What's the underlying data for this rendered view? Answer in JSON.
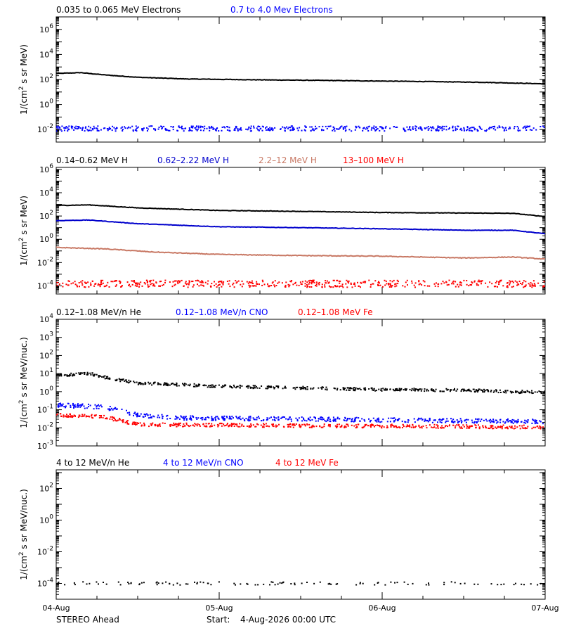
{
  "chart_data": [
    {
      "type": "scatter",
      "y_scale": "log",
      "ylabel_main": "1/(cm",
      "ylabel_sup": "2",
      "ylabel_rest": " s sr MeV)",
      "ylim": [
        0.001,
        10000000
      ],
      "yticks": [
        {
          "b": "10",
          "e": "6",
          "v": 1000000
        },
        {
          "b": "10",
          "e": "4",
          "v": 10000
        },
        {
          "b": "10",
          "e": "2",
          "v": 100
        },
        {
          "b": "10",
          "e": "0",
          "v": 1
        },
        {
          "b": "10",
          "e": "-2",
          "v": 0.01
        }
      ],
      "series": [
        {
          "name": "0.035 to 0.065 MeV Electrons",
          "color": "#000000",
          "style": "line",
          "noise": 0.02,
          "points": [
            [
              0,
              300
            ],
            [
              0.15,
              350
            ],
            [
              0.3,
              230
            ],
            [
              0.5,
              150
            ],
            [
              0.8,
              110
            ],
            [
              1.2,
              95
            ],
            [
              1.6,
              85
            ],
            [
              2.2,
              70
            ],
            [
              2.6,
              60
            ],
            [
              3,
              45
            ]
          ]
        },
        {
          "name": "0.7 to 4.0 Mev Electrons",
          "color": "#0000ff",
          "style": "scatter",
          "noise": 0.2,
          "points": [
            [
              0,
              0.012
            ],
            [
              3,
              0.012
            ]
          ]
        }
      ]
    },
    {
      "type": "scatter",
      "y_scale": "log",
      "ylabel_main": "1/(cm",
      "ylabel_sup": "2",
      "ylabel_rest": " s sr MeV)",
      "ylim": [
        2e-05,
        1500000
      ],
      "yticks": [
        {
          "b": "10",
          "e": "6",
          "v": 1000000
        },
        {
          "b": "10",
          "e": "4",
          "v": 10000
        },
        {
          "b": "10",
          "e": "2",
          "v": 100
        },
        {
          "b": "10",
          "e": "0",
          "v": 1
        },
        {
          "b": "10",
          "e": "-2",
          "v": 0.01
        },
        {
          "b": "10",
          "e": "-4",
          "v": 0.0001
        }
      ],
      "series": [
        {
          "name": "0.14–0.62 MeV H",
          "color": "#000000",
          "style": "line",
          "noise": 0.02,
          "points": [
            [
              0,
              800
            ],
            [
              0.2,
              900
            ],
            [
              0.5,
              500
            ],
            [
              1,
              300
            ],
            [
              1.5,
              250
            ],
            [
              2,
              200
            ],
            [
              2.5,
              180
            ],
            [
              2.8,
              170
            ],
            [
              3,
              90
            ]
          ]
        },
        {
          "name": "0.62–2.22 MeV H",
          "color": "#0000cc",
          "style": "line",
          "noise": 0.02,
          "points": [
            [
              0,
              40
            ],
            [
              0.2,
              45
            ],
            [
              0.5,
              22
            ],
            [
              1,
              12
            ],
            [
              1.5,
              10
            ],
            [
              2,
              8
            ],
            [
              2.5,
              6
            ],
            [
              2.8,
              6
            ],
            [
              3,
              3
            ]
          ]
        },
        {
          "name": "2.2–12 MeV H",
          "color": "#c87864",
          "style": "line",
          "noise": 0.03,
          "points": [
            [
              0,
              0.2
            ],
            [
              0.3,
              0.15
            ],
            [
              0.6,
              0.08
            ],
            [
              1,
              0.05
            ],
            [
              1.5,
              0.04
            ],
            [
              2,
              0.035
            ],
            [
              2.5,
              0.025
            ],
            [
              2.8,
              0.03
            ],
            [
              3,
              0.02
            ]
          ]
        },
        {
          "name": "13–100 MeV H",
          "color": "#ff0000",
          "style": "scatter",
          "noise": 0.3,
          "points": [
            [
              0,
              0.00015
            ],
            [
              3,
              0.00015
            ]
          ]
        }
      ]
    },
    {
      "type": "scatter",
      "y_scale": "log",
      "ylabel_main": "1/(cm",
      "ylabel_sup": "2",
      "ylabel_rest": " s sr MeV/nuc.)",
      "ylim": [
        0.001,
        10000
      ],
      "yticks": [
        {
          "b": "10",
          "e": "4",
          "v": 10000
        },
        {
          "b": "10",
          "e": "3",
          "v": 1000
        },
        {
          "b": "10",
          "e": "2",
          "v": 100
        },
        {
          "b": "10",
          "e": "1",
          "v": 10
        },
        {
          "b": "10",
          "e": "0",
          "v": 1
        },
        {
          "b": "10",
          "e": "-1",
          "v": 0.1
        },
        {
          "b": "10",
          "e": "-2",
          "v": 0.01
        },
        {
          "b": "10",
          "e": "-3",
          "v": 0.001
        }
      ],
      "series": [
        {
          "name": "0.12–1.08 MeV/n He",
          "color": "#000000",
          "style": "scatter",
          "noise": 0.08,
          "points": [
            [
              0,
              8
            ],
            [
              0.2,
              10
            ],
            [
              0.35,
              5
            ],
            [
              0.5,
              3
            ],
            [
              1,
              2
            ],
            [
              1.5,
              1.6
            ],
            [
              2,
              1.3
            ],
            [
              2.5,
              1.2
            ],
            [
              3,
              0.9
            ]
          ]
        },
        {
          "name": "0.12–1.08 MeV/n CNO",
          "color": "#0000ff",
          "style": "scatter",
          "noise": 0.12,
          "points": [
            [
              0,
              0.18
            ],
            [
              0.3,
              0.14
            ],
            [
              0.5,
              0.05
            ],
            [
              0.8,
              0.035
            ],
            [
              3,
              0.022
            ]
          ]
        },
        {
          "name": "0.12–1.08 MeV Fe",
          "color": "#ff0000",
          "style": "scatter",
          "noise": 0.1,
          "points": [
            [
              0,
              0.05
            ],
            [
              0.3,
              0.04
            ],
            [
              0.5,
              0.015
            ],
            [
              3,
              0.011
            ]
          ]
        }
      ]
    },
    {
      "type": "scatter",
      "y_scale": "log",
      "ylabel_main": "1/(cm",
      "ylabel_sup": "2",
      "ylabel_rest": " s sr MeV/nuc.)",
      "ylim": [
        1e-05,
        1500
      ],
      "yticks": [
        {
          "b": "10",
          "e": "2",
          "v": 100
        },
        {
          "b": "10",
          "e": "0",
          "v": 1
        },
        {
          "b": "10",
          "e": "-2",
          "v": 0.01
        },
        {
          "b": "10",
          "e": "-4",
          "v": 0.0001
        }
      ],
      "series": [
        {
          "name": "4 to 12 MeV/n He",
          "color": "#000000",
          "style": "sparse",
          "noise": 0.1,
          "points": [
            [
              0,
              0.0001
            ],
            [
              3,
              0.0001
            ]
          ]
        },
        {
          "name": "4 to 12 MeV/n CNO",
          "color": "#0000ff",
          "style": "none",
          "points": []
        },
        {
          "name": "4 to 12 MeV Fe",
          "color": "#ff0000",
          "style": "none",
          "points": []
        }
      ]
    }
  ],
  "x_axis": {
    "tick_labels": [
      "04-Aug",
      "05-Aug",
      "06-Aug",
      "07-Aug"
    ],
    "tick_values": [
      0,
      1,
      2,
      3
    ],
    "xlim": [
      0,
      3
    ]
  },
  "footer": {
    "spacecraft": "STEREO Ahead",
    "start_label": "Start:",
    "start_value": "4-Aug-2026 00:00 UTC"
  }
}
